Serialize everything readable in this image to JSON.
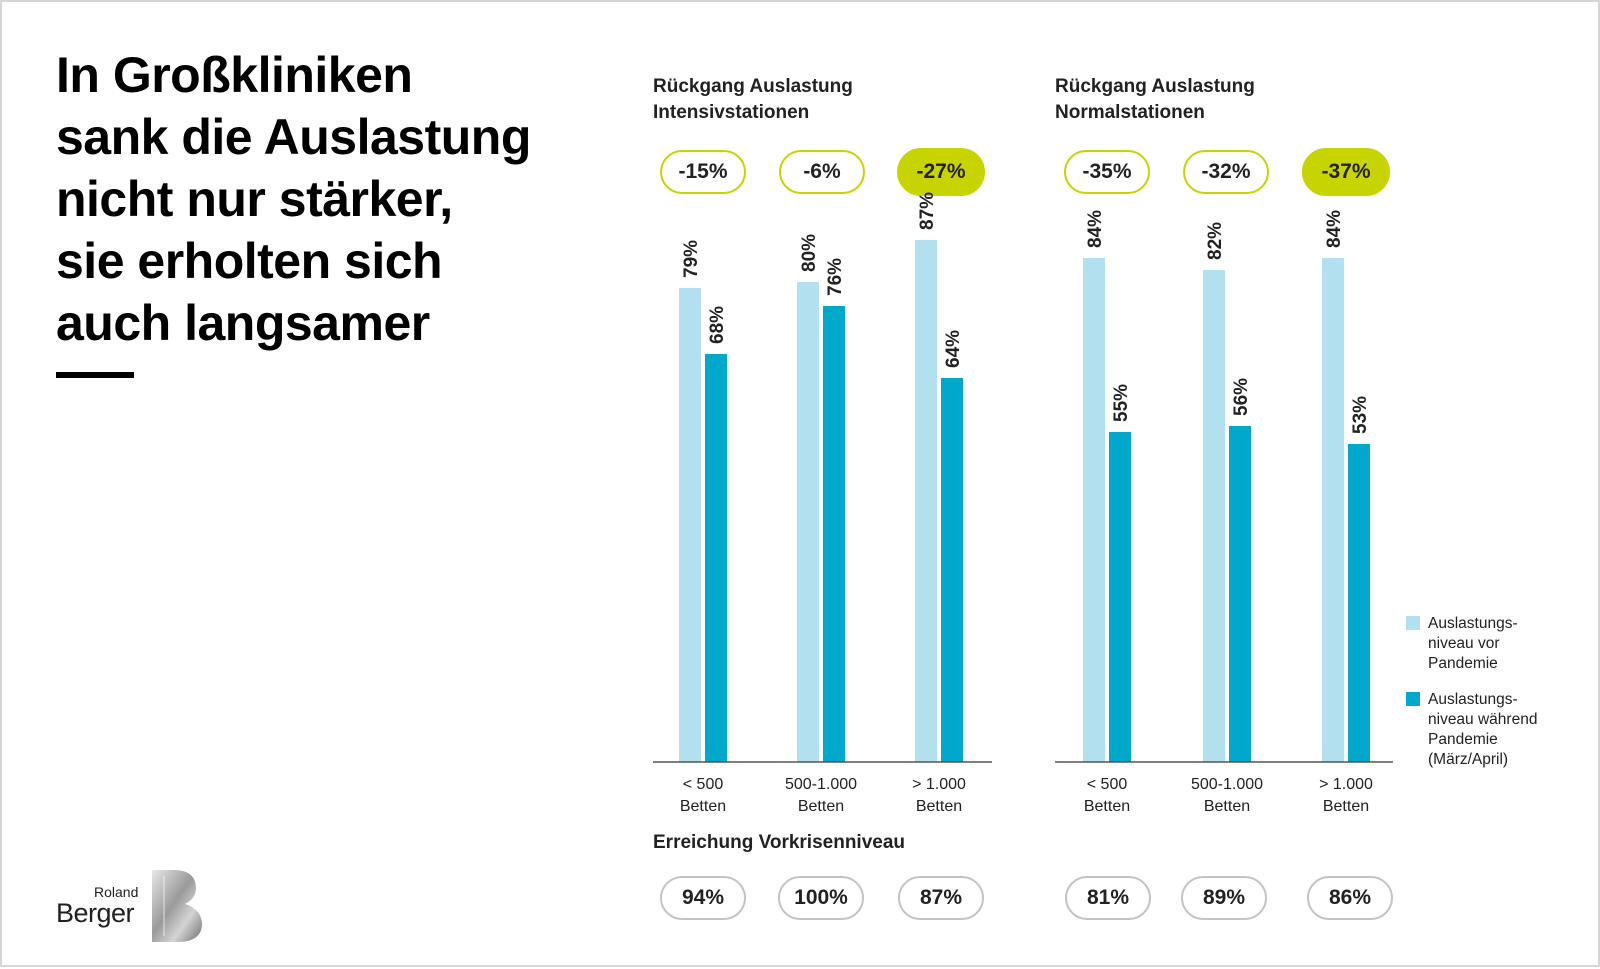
{
  "headline": {
    "lines": [
      "In Großkliniken",
      "sank die Auslastung",
      "nicht nur stärker,",
      "sie erholten sich",
      "auch langsamer"
    ]
  },
  "reach_title": "Erreichung Vorkrisenniveau",
  "legend": {
    "before": [
      "Auslastungs-",
      "niveau vor",
      "Pandemie"
    ],
    "during": [
      "Auslastungs-",
      "niveau während",
      "Pandemie",
      "(März/April)"
    ]
  },
  "logo": {
    "roland": "Roland",
    "berger": "Berger",
    "b_icon": "b-logo-icon"
  },
  "colors": {
    "before": "#b3e0ee",
    "during": "#00a9cc",
    "accent": "#c8d400",
    "pill_border": "#c3c3c3"
  },
  "chart_data": [
    {
      "type": "bar",
      "title_lines": [
        "Rückgang Auslastung",
        "Intensivstationen"
      ],
      "categories": [
        [
          "< 500",
          "Betten"
        ],
        [
          "500-1.000",
          "Betten"
        ],
        [
          "> 1.000",
          "Betten"
        ]
      ],
      "series": [
        {
          "name": "Auslastungsniveau vor Pandemie",
          "values": [
            79,
            80,
            87
          ],
          "labels": [
            "79%",
            "80%",
            "87%"
          ]
        },
        {
          "name": "Auslastungsniveau während Pandemie (März/April)",
          "values": [
            68,
            76,
            64
          ],
          "labels": [
            "68%",
            "76%",
            "64%"
          ]
        }
      ],
      "decline": [
        "-15%",
        "-6%",
        "-27%"
      ],
      "decline_highlight": [
        false,
        false,
        true
      ],
      "recovery": [
        "94%",
        "100%",
        "87%"
      ],
      "ylim": [
        0,
        100
      ]
    },
    {
      "type": "bar",
      "title_lines": [
        "Rückgang Auslastung",
        "Normalstationen"
      ],
      "categories": [
        [
          "< 500",
          "Betten"
        ],
        [
          "500-1.000",
          "Betten"
        ],
        [
          "> 1.000",
          "Betten"
        ]
      ],
      "series": [
        {
          "name": "Auslastungsniveau vor Pandemie",
          "values": [
            84,
            82,
            84
          ],
          "labels": [
            "84%",
            "82%",
            "84%"
          ]
        },
        {
          "name": "Auslastungsniveau während Pandemie (März/April)",
          "values": [
            55,
            56,
            53
          ],
          "labels": [
            "55%",
            "56%",
            "53%"
          ]
        }
      ],
      "decline": [
        "-35%",
        "-32%",
        "-37%"
      ],
      "decline_highlight": [
        false,
        false,
        true
      ],
      "recovery": [
        "81%",
        "89%",
        "86%"
      ],
      "ylim": [
        0,
        100
      ]
    }
  ]
}
